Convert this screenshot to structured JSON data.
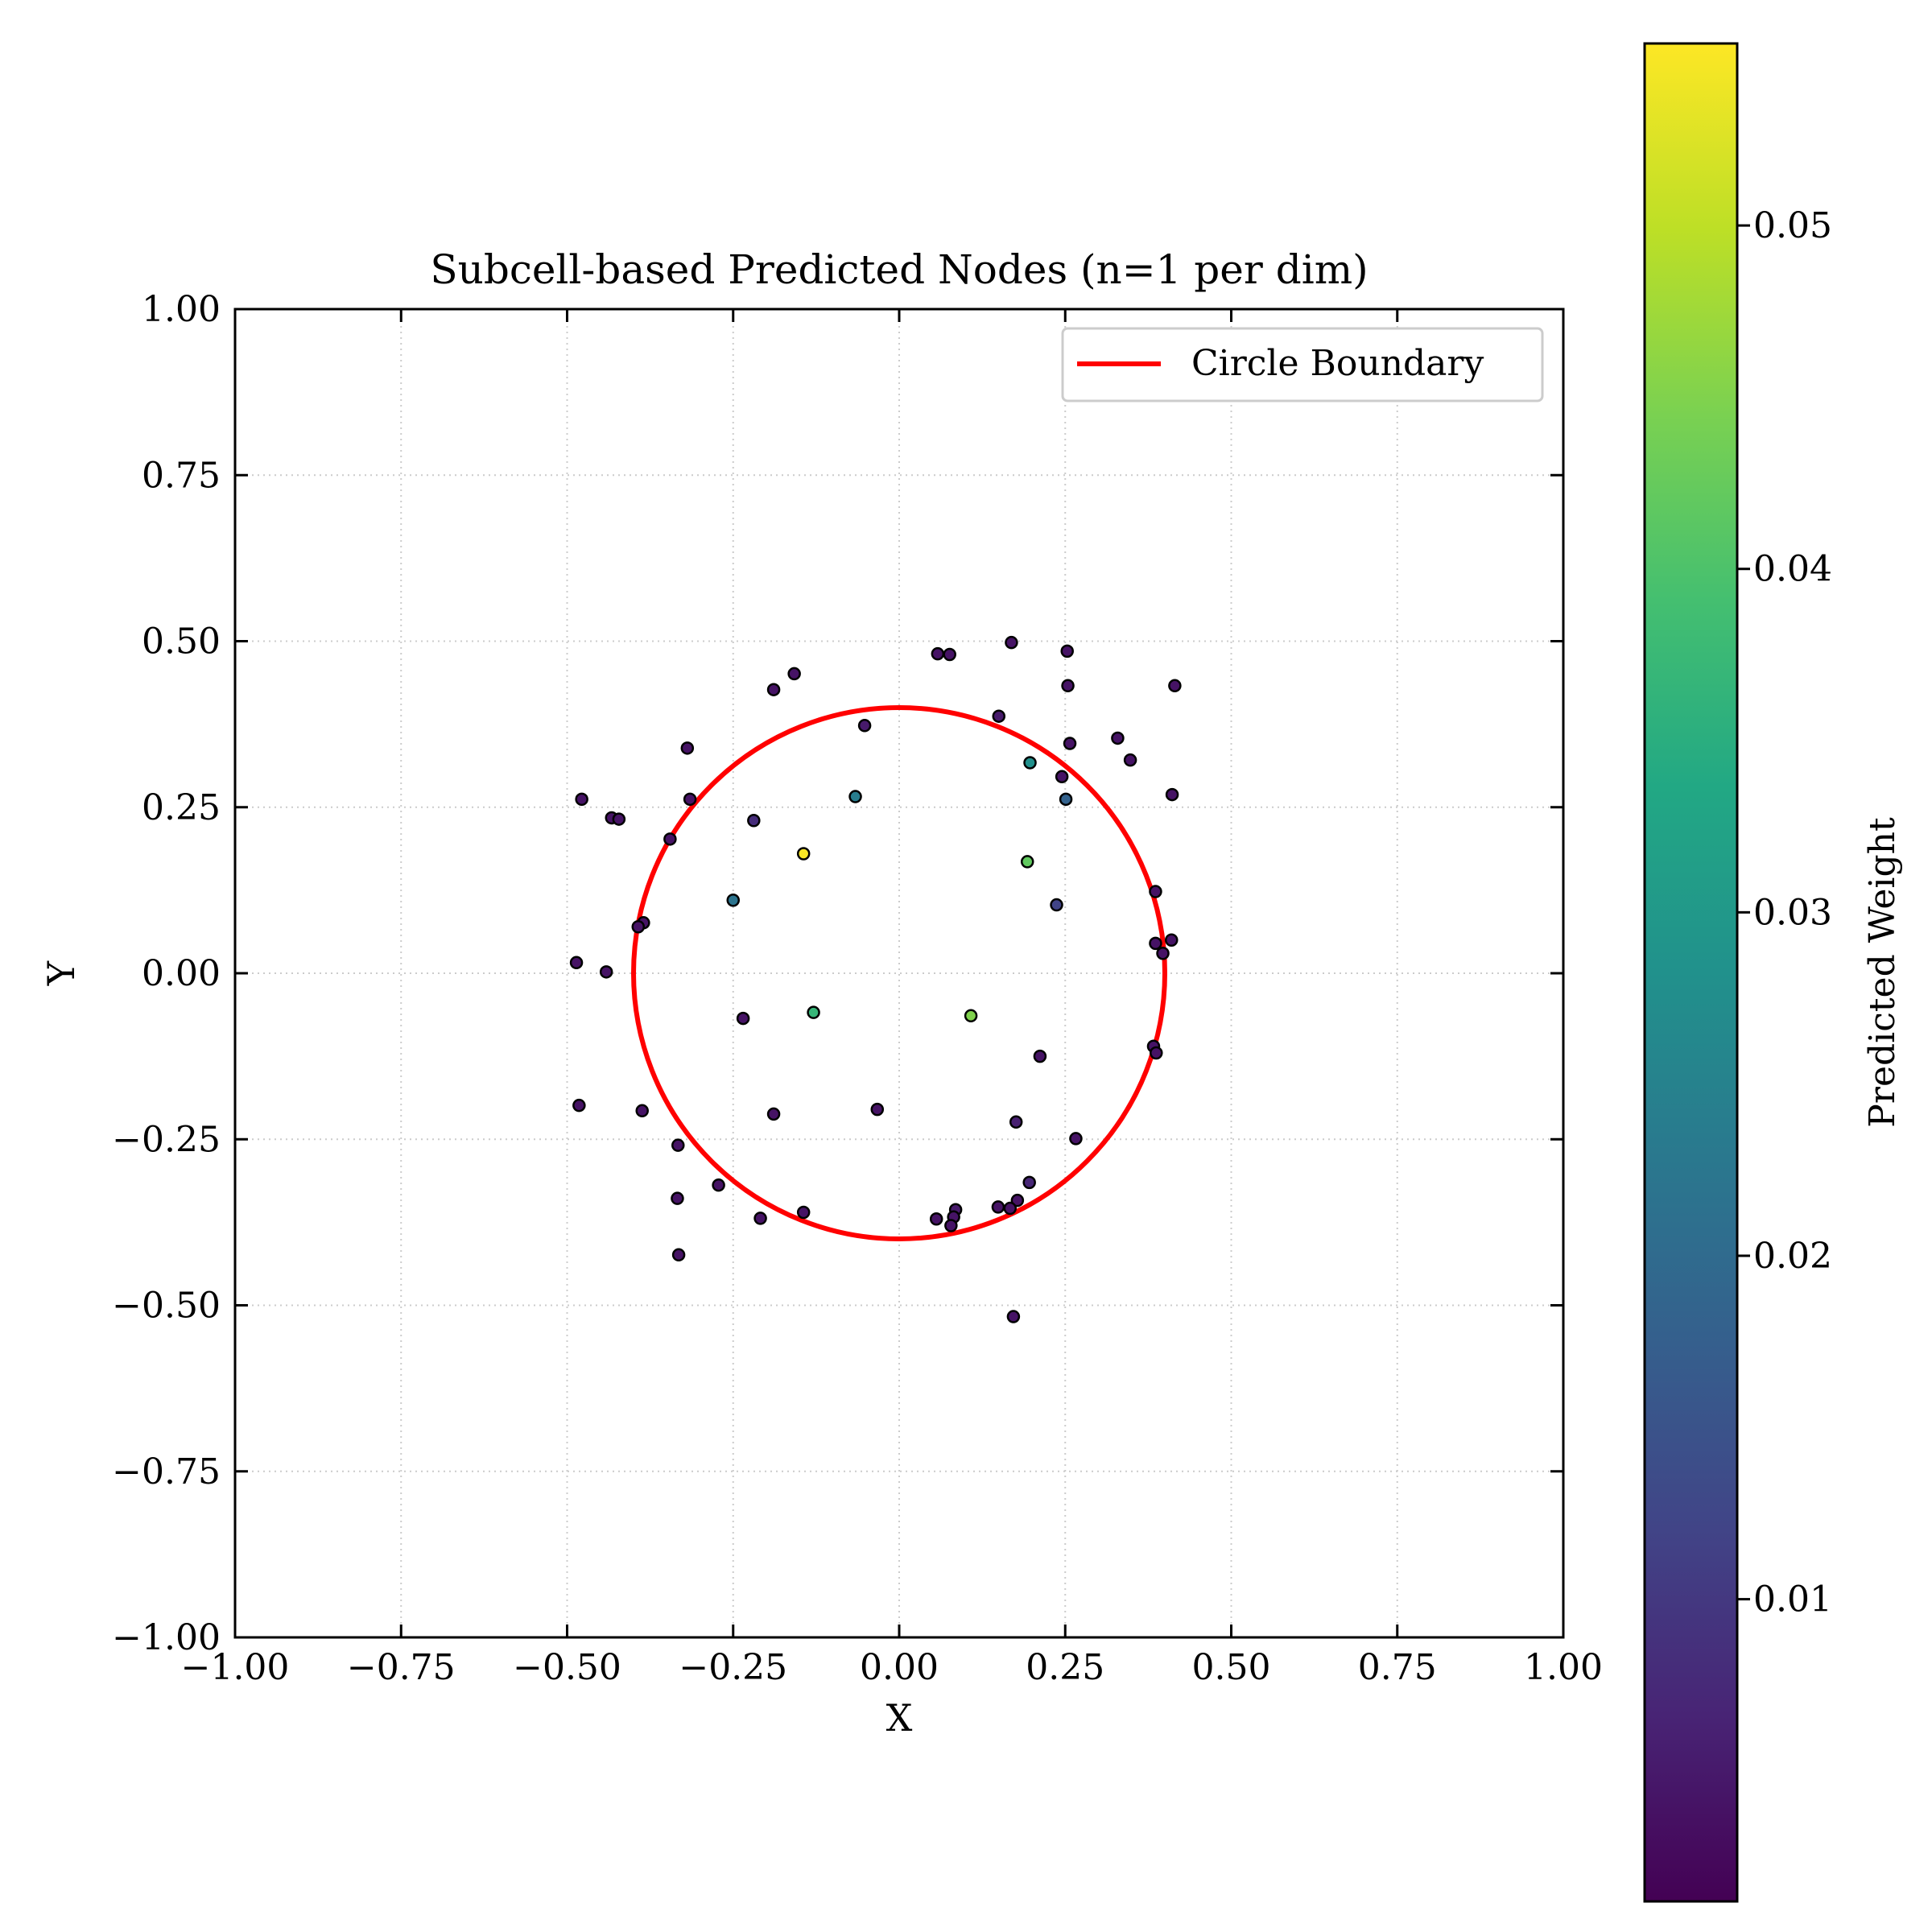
{
  "chart_data": {
    "type": "scatter",
    "title": "Subcell-based Predicted Nodes (n=1 per dim)",
    "xlabel": "X",
    "ylabel": "Y",
    "xlim": [
      -1.0,
      1.0
    ],
    "ylim": [
      -1.0,
      1.0
    ],
    "grid": true,
    "legend": {
      "placement": "top-right",
      "entries": [
        {
          "label": "Circle Boundary",
          "color": "#ff0000"
        }
      ]
    },
    "x_ticks": [
      "−1.00",
      "−0.75",
      "−0.50",
      "−0.25",
      "0.00",
      "0.25",
      "0.50",
      "0.75",
      "1.00"
    ],
    "y_ticks": [
      "−1.00",
      "−0.75",
      "−0.50",
      "−0.25",
      "0.00",
      "0.25",
      "0.50",
      "0.75",
      "1.00"
    ],
    "x_tick_values": [
      -1.0,
      -0.75,
      -0.5,
      -0.25,
      0.0,
      0.25,
      0.5,
      0.75,
      1.0
    ],
    "y_tick_values": [
      -1.0,
      -0.75,
      -0.5,
      -0.25,
      0.0,
      0.25,
      0.5,
      0.75,
      1.0
    ],
    "circle": {
      "label": "Circle Boundary",
      "center": [
        0.0,
        0.0
      ],
      "radius": 0.4,
      "color": "#ff0000"
    },
    "colorbar": {
      "label": "Predicted Weight",
      "range": [
        0.0012,
        0.0553
      ],
      "ticks": [
        "0.01",
        "0.02",
        "0.03",
        "0.04",
        "0.05"
      ],
      "tick_values": [
        0.01,
        0.02,
        0.03,
        0.04,
        0.05
      ],
      "colormap": "viridis"
    },
    "points": [
      {
        "x": 0.058,
        "y": 0.481,
        "w": 0.004
      },
      {
        "x": 0.076,
        "y": 0.48,
        "w": 0.004
      },
      {
        "x": 0.169,
        "y": 0.498,
        "w": 0.004
      },
      {
        "x": 0.253,
        "y": 0.485,
        "w": 0.004
      },
      {
        "x": 0.254,
        "y": 0.433,
        "w": 0.004
      },
      {
        "x": 0.415,
        "y": 0.433,
        "w": 0.004
      },
      {
        "x": -0.158,
        "y": 0.451,
        "w": 0.004
      },
      {
        "x": -0.189,
        "y": 0.427,
        "w": 0.004
      },
      {
        "x": 0.15,
        "y": 0.387,
        "w": 0.005
      },
      {
        "x": -0.052,
        "y": 0.373,
        "w": 0.005
      },
      {
        "x": 0.329,
        "y": 0.354,
        "w": 0.004
      },
      {
        "x": 0.257,
        "y": 0.346,
        "w": 0.004
      },
      {
        "x": 0.348,
        "y": 0.321,
        "w": 0.004
      },
      {
        "x": -0.319,
        "y": 0.339,
        "w": 0.004
      },
      {
        "x": 0.197,
        "y": 0.317,
        "w": 0.028
      },
      {
        "x": 0.245,
        "y": 0.296,
        "w": 0.004
      },
      {
        "x": 0.411,
        "y": 0.269,
        "w": 0.004
      },
      {
        "x": -0.066,
        "y": 0.266,
        "w": 0.024
      },
      {
        "x": 0.251,
        "y": 0.262,
        "w": 0.018
      },
      {
        "x": -0.478,
        "y": 0.262,
        "w": 0.004
      },
      {
        "x": -0.315,
        "y": 0.262,
        "w": 0.004
      },
      {
        "x": -0.433,
        "y": 0.234,
        "w": 0.004
      },
      {
        "x": -0.422,
        "y": 0.232,
        "w": 0.004
      },
      {
        "x": -0.219,
        "y": 0.23,
        "w": 0.008
      },
      {
        "x": -0.345,
        "y": 0.202,
        "w": 0.004
      },
      {
        "x": -0.144,
        "y": 0.18,
        "w": 0.055
      },
      {
        "x": 0.193,
        "y": 0.168,
        "w": 0.042
      },
      {
        "x": 0.386,
        "y": 0.123,
        "w": 0.004
      },
      {
        "x": -0.25,
        "y": 0.11,
        "w": 0.022
      },
      {
        "x": 0.237,
        "y": 0.103,
        "w": 0.012
      },
      {
        "x": -0.385,
        "y": 0.076,
        "w": 0.004
      },
      {
        "x": -0.393,
        "y": 0.07,
        "w": 0.004
      },
      {
        "x": 0.386,
        "y": 0.045,
        "w": 0.004
      },
      {
        "x": 0.41,
        "y": 0.05,
        "w": 0.004
      },
      {
        "x": 0.397,
        "y": 0.03,
        "w": 0.004
      },
      {
        "x": -0.486,
        "y": 0.016,
        "w": 0.004
      },
      {
        "x": -0.441,
        "y": 0.002,
        "w": 0.004
      },
      {
        "x": -0.235,
        "y": -0.068,
        "w": 0.004
      },
      {
        "x": -0.129,
        "y": -0.059,
        "w": 0.037
      },
      {
        "x": 0.108,
        "y": -0.064,
        "w": 0.045
      },
      {
        "x": 0.212,
        "y": -0.125,
        "w": 0.004
      },
      {
        "x": 0.383,
        "y": -0.11,
        "w": 0.004
      },
      {
        "x": 0.387,
        "y": -0.12,
        "w": 0.004
      },
      {
        "x": -0.482,
        "y": -0.199,
        "w": 0.004
      },
      {
        "x": -0.387,
        "y": -0.207,
        "w": 0.004
      },
      {
        "x": -0.189,
        "y": -0.212,
        "w": 0.004
      },
      {
        "x": -0.033,
        "y": -0.205,
        "w": 0.004
      },
      {
        "x": 0.176,
        "y": -0.224,
        "w": 0.006
      },
      {
        "x": 0.266,
        "y": -0.249,
        "w": 0.004
      },
      {
        "x": -0.333,
        "y": -0.259,
        "w": 0.004
      },
      {
        "x": -0.272,
        "y": -0.319,
        "w": 0.004
      },
      {
        "x": 0.196,
        "y": -0.315,
        "w": 0.007
      },
      {
        "x": -0.334,
        "y": -0.339,
        "w": 0.004
      },
      {
        "x": 0.178,
        "y": -0.342,
        "w": 0.004
      },
      {
        "x": 0.149,
        "y": -0.352,
        "w": 0.004
      },
      {
        "x": 0.085,
        "y": -0.356,
        "w": 0.005
      },
      {
        "x": -0.144,
        "y": -0.36,
        "w": 0.004
      },
      {
        "x": 0.167,
        "y": -0.354,
        "w": 0.004
      },
      {
        "x": 0.056,
        "y": -0.37,
        "w": 0.004
      },
      {
        "x": -0.209,
        "y": -0.369,
        "w": 0.004
      },
      {
        "x": 0.082,
        "y": -0.367,
        "w": 0.004
      },
      {
        "x": 0.078,
        "y": -0.38,
        "w": 0.004
      },
      {
        "x": -0.332,
        "y": -0.424,
        "w": 0.004
      },
      {
        "x": 0.172,
        "y": -0.517,
        "w": 0.004
      }
    ]
  }
}
